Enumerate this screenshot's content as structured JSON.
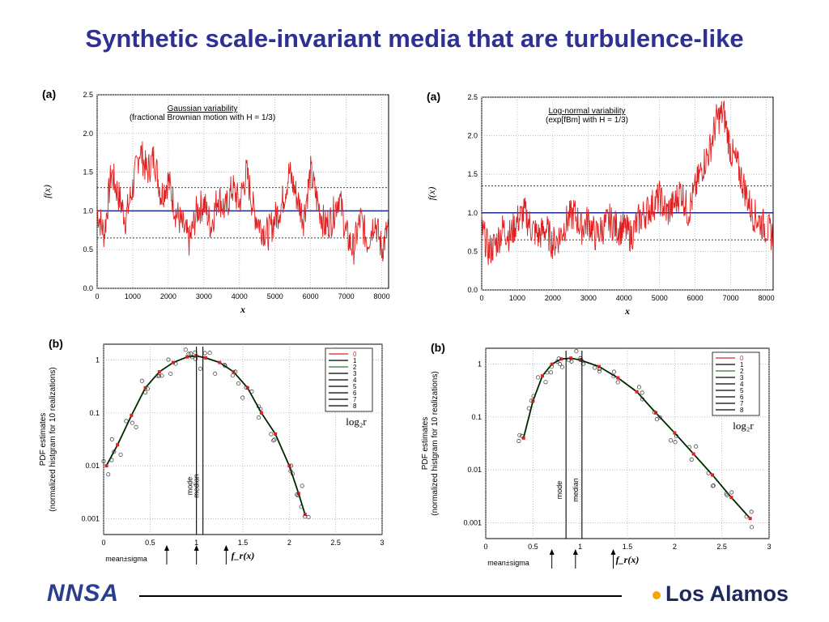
{
  "title": "Synthetic scale-invariant media that are turbulence-like",
  "footer": {
    "left_logo": "NNSA",
    "right_logo": "Los Alamos"
  },
  "colors": {
    "title": "#2e3192",
    "signal": "#e02020",
    "mean_line": "#1a2a8a"
  },
  "chart_data": [
    {
      "panel": "(a)",
      "type": "line",
      "annotation": [
        "Gaussian variability",
        "(fractional Brownian motion with H = 1/3)"
      ],
      "xlabel": "x",
      "ylabel": "f(x)",
      "xlim": [
        0,
        8192
      ],
      "ylim": [
        0,
        2.5
      ],
      "xticks": [
        "0",
        "1000",
        "2000",
        "3000",
        "4000",
        "5000",
        "6000",
        "7000",
        "8000"
      ],
      "yticks": [
        "0.0",
        "0.5",
        "1.0",
        "1.5",
        "2.0",
        "2.5"
      ],
      "mean": 1.0,
      "mean_plus_sigma": 1.3,
      "mean_minus_sigma": 0.65,
      "series": [
        {
          "x": [
            0,
            200,
            400,
            600,
            800,
            1000,
            1200,
            1400,
            1600,
            1800,
            2000,
            2200,
            2400,
            2600,
            2800,
            3000,
            3200,
            3400,
            3600,
            3800,
            4000,
            4200,
            4400,
            4600,
            4800,
            5000,
            5200,
            5400,
            5600,
            5800,
            6000,
            6200,
            6400,
            6600,
            6800,
            7000,
            7200,
            7400,
            7600,
            7800,
            8000,
            8192
          ],
          "y": [
            1.0,
            0.7,
            1.5,
            1.2,
            0.9,
            1.3,
            1.8,
            1.5,
            1.7,
            1.2,
            1.4,
            1.0,
            0.8,
            0.6,
            1.0,
            1.1,
            0.8,
            1.2,
            1.0,
            1.3,
            1.1,
            1.5,
            1.0,
            0.8,
            0.7,
            0.9,
            1.1,
            1.5,
            1.2,
            0.9,
            1.5,
            1.1,
            0.8,
            0.9,
            1.2,
            0.7,
            0.5,
            0.9,
            0.6,
            0.9,
            0.5,
            0.8
          ]
        }
      ]
    },
    {
      "panel": "(a)",
      "type": "line",
      "annotation": [
        "Log-normal variability",
        "(exp[fBm] with H = 1/3)"
      ],
      "xlabel": "x",
      "ylabel": "f(x)",
      "xlim": [
        0,
        8192
      ],
      "ylim": [
        0,
        2.5
      ],
      "xticks": [
        "0",
        "1000",
        "2000",
        "3000",
        "4000",
        "5000",
        "6000",
        "7000",
        "8000"
      ],
      "yticks": [
        "0.0",
        "0.5",
        "1.0",
        "1.5",
        "2.0",
        "2.5"
      ],
      "mean": 1.0,
      "mean_plus_sigma": 1.35,
      "mean_minus_sigma": 0.65,
      "series": [
        {
          "x": [
            0,
            200,
            400,
            600,
            800,
            1000,
            1200,
            1400,
            1600,
            1800,
            2000,
            2200,
            2400,
            2600,
            2800,
            3000,
            3200,
            3400,
            3600,
            3800,
            4000,
            4200,
            4400,
            4600,
            4800,
            5000,
            5200,
            5400,
            5600,
            5800,
            6000,
            6200,
            6400,
            6600,
            6800,
            7000,
            7200,
            7400,
            7600,
            7800,
            8000,
            8192
          ],
          "y": [
            0.8,
            0.5,
            0.6,
            0.8,
            0.7,
            0.9,
            1.0,
            0.8,
            0.7,
            0.8,
            0.6,
            0.7,
            0.9,
            1.0,
            0.8,
            0.9,
            0.7,
            0.8,
            0.9,
            0.8,
            0.8,
            0.7,
            0.9,
            1.0,
            1.1,
            1.2,
            1.0,
            1.1,
            1.3,
            1.0,
            1.3,
            1.6,
            1.8,
            2.2,
            2.3,
            1.8,
            1.6,
            1.3,
            1.0,
            0.9,
            0.8,
            0.7
          ]
        }
      ]
    },
    {
      "panel": "(b)",
      "type": "scatter",
      "xlabel": "f_r(x)",
      "ylabel": "PDF estimates (normalized histgram for 10 realizations)",
      "yscale": "log",
      "xlim": [
        0,
        3
      ],
      "ylim": [
        0.0005,
        2
      ],
      "xticks": [
        "0",
        "0.5",
        "1",
        "1.5",
        "2",
        "2.5",
        "3"
      ],
      "yticks": [
        "0.001",
        "0.01",
        "0.1",
        "1"
      ],
      "legend_title": "log₂r",
      "legend": [
        "0",
        "1",
        "2",
        "3",
        "4",
        "5",
        "6",
        "7",
        "8"
      ],
      "vlines": [
        {
          "label": "mode",
          "x": 1.0
        },
        {
          "label": "median",
          "x": 1.0
        }
      ],
      "bottom_label": "mean±sigma",
      "arrows_x": [
        0.68,
        1.0,
        1.32
      ],
      "series": [
        {
          "name": "0",
          "x": [
            0.03,
            0.15,
            0.3,
            0.45,
            0.6,
            0.75,
            0.9,
            1.0,
            1.1,
            1.25,
            1.4,
            1.55,
            1.7,
            1.85,
            2.0,
            2.1,
            2.17
          ],
          "y": [
            0.01,
            0.025,
            0.09,
            0.3,
            0.6,
            0.9,
            1.15,
            1.2,
            1.1,
            0.9,
            0.6,
            0.3,
            0.1,
            0.04,
            0.01,
            0.003,
            0.0012
          ]
        }
      ]
    },
    {
      "panel": "(b)",
      "type": "scatter",
      "xlabel": "f_r(x)",
      "ylabel": "PDF estimates (normalized histgram for 10 realizations)",
      "yscale": "log",
      "xlim": [
        0,
        3
      ],
      "ylim": [
        0.0005,
        2
      ],
      "xticks": [
        "0",
        "0.5",
        "1",
        "1.5",
        "2",
        "2.5",
        "3"
      ],
      "yticks": [
        "0.001",
        "0.01",
        "0.1",
        "1"
      ],
      "legend_title": "log₂r",
      "legend": [
        "0",
        "1",
        "2",
        "3",
        "4",
        "5",
        "6",
        "7",
        "8"
      ],
      "vlines": [
        {
          "label": "mode",
          "x": 0.85
        },
        {
          "label": "median",
          "x": 0.95
        }
      ],
      "bottom_label": "mean±sigma",
      "arrows_x": [
        0.7,
        0.95,
        1.35
      ],
      "series": [
        {
          "name": "0",
          "x": [
            0.4,
            0.5,
            0.6,
            0.7,
            0.8,
            0.9,
            1.0,
            1.2,
            1.4,
            1.6,
            1.8,
            2.0,
            2.2,
            2.4,
            2.6,
            2.8
          ],
          "y": [
            0.04,
            0.2,
            0.6,
            1.0,
            1.25,
            1.3,
            1.2,
            0.9,
            0.55,
            0.3,
            0.12,
            0.05,
            0.02,
            0.008,
            0.003,
            0.0012
          ]
        }
      ]
    }
  ]
}
